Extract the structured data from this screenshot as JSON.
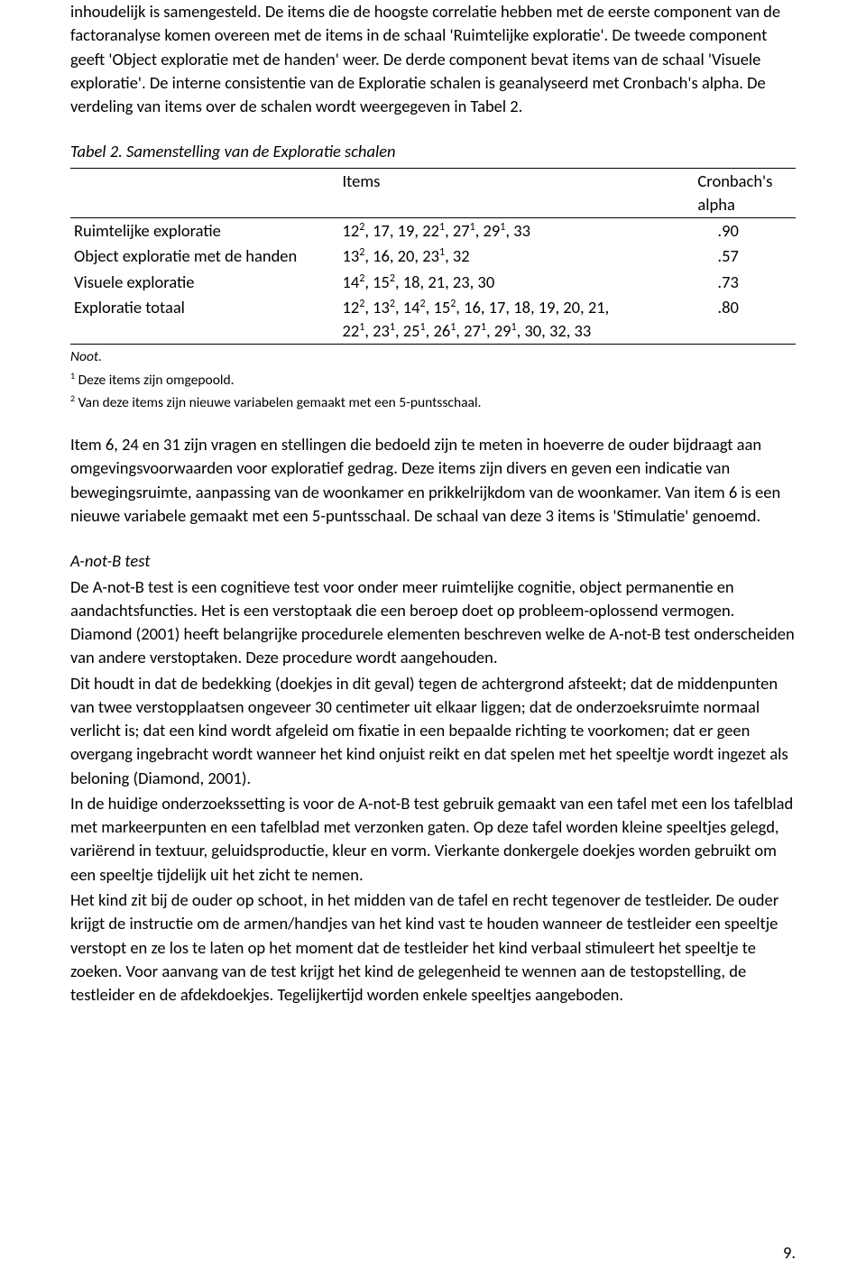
{
  "para1": "inhoudelijk is samengesteld. De items die de hoogste correlatie hebben met de eerste component van de factoranalyse komen overeen met de items in de schaal 'Ruimtelijke exploratie'. De tweede component geeft 'Object exploratie met de handen' weer. De derde component bevat items van de schaal 'Visuele exploratie'. De interne consistentie van de Exploratie schalen is geanalyseerd met Cronbach's alpha. De verdeling van items over de schalen wordt weergegeven in Tabel 2.",
  "table2": {
    "caption": "Tabel 2. Samenstelling van de Exploratie schalen",
    "header": {
      "items": "Items",
      "alpha": "Cronbach's alpha"
    },
    "rows": [
      {
        "label": "Ruimtelijke exploratie",
        "alpha": ".90"
      },
      {
        "label": "Object exploratie met de handen",
        "alpha": ".57"
      },
      {
        "label": "Visuele exploratie",
        "alpha": ".73"
      },
      {
        "label": "Exploratie totaal",
        "alpha": ".80"
      }
    ],
    "noot": "Noot.",
    "foot1_pre": "1",
    "foot1": " Deze items zijn omgepoold.",
    "foot2_pre": "2",
    "foot2": " Van deze items zijn nieuwe variabelen gemaakt met een 5-puntsschaal."
  },
  "para2": "Item 6, 24 en 31 zijn vragen en stellingen die bedoeld zijn te meten in hoeverre de ouder bijdraagt aan omgevingsvoorwaarden voor exploratief gedrag. Deze items zijn divers en geven een indicatie van bewegingsruimte, aanpassing van de woonkamer en prikkelrijkdom van de woonkamer. Van item 6 is een nieuwe variabele gemaakt met een 5-puntsschaal. De schaal van deze 3 items is 'Stimulatie' genoemd.",
  "heading2": "A-not-B test",
  "para3": "De A-not-B test is een cognitieve test voor onder meer ruimtelijke cognitie, object permanentie en aandachtsfuncties. Het is een verstoptaak die een beroep doet op probleem-oplossend vermogen. Diamond (2001) heeft belangrijke procedurele elementen beschreven welke de A-not-B test onderscheiden van andere verstoptaken. Deze procedure wordt aangehouden.",
  "para4": "Dit houdt in dat de bedekking (doekjes in dit geval) tegen de achtergrond afsteekt; dat de middenpunten van twee verstopplaatsen ongeveer 30 centimeter uit elkaar liggen; dat de onderzoeksruimte normaal verlicht is; dat een kind wordt afgeleid om fixatie in een bepaalde richting te voorkomen; dat er geen overgang ingebracht wordt wanneer het kind onjuist reikt en dat spelen met het speeltje wordt ingezet als beloning (Diamond, 2001).",
  "para5": "In de huidige onderzoekssetting is voor de A-not-B test gebruik gemaakt van een tafel met een los tafelblad met markeerpunten en een tafelblad met verzonken gaten. Op deze tafel worden kleine speeltjes gelegd, variërend in textuur, geluidsproductie, kleur en vorm. Vierkante donkergele doekjes worden gebruikt om een speeltje tijdelijk uit het zicht te nemen.",
  "para6": "Het kind zit bij de ouder op schoot, in het midden van de tafel en recht tegenover de testleider. De ouder krijgt de instructie om de armen/handjes van het kind vast te houden wanneer de testleider een speeltje verstopt en ze los te laten op het moment dat de testleider het kind verbaal stimuleert het speeltje te zoeken. Voor aanvang van de test krijgt het kind de gelegenheid te wennen aan de testopstelling, de testleider en de afdekdoekjes. Tegelijkertijd worden enkele speeltjes aangeboden.",
  "pageNumber": "9."
}
